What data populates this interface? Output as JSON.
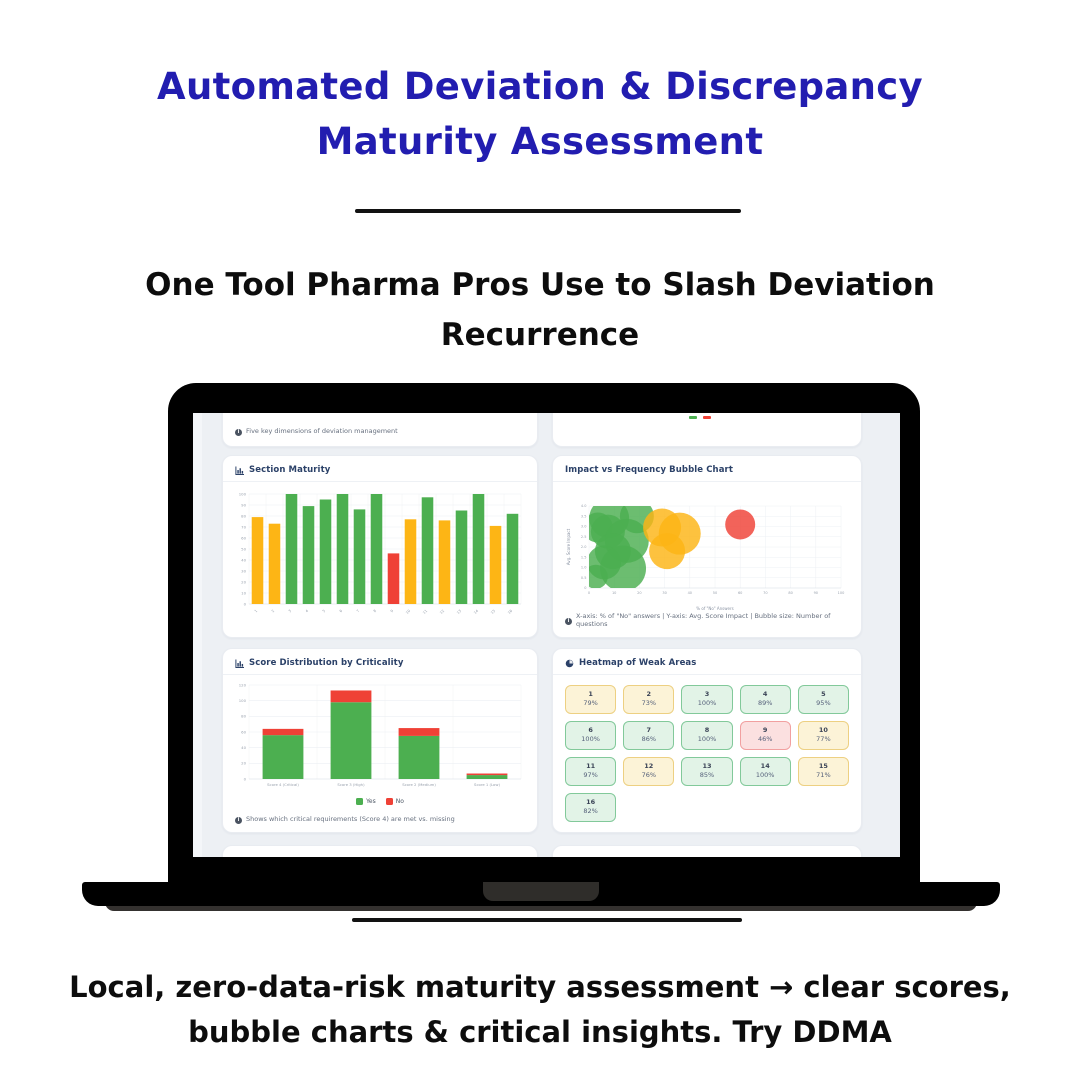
{
  "header": {
    "title_line1": "Automated Deviation & Discrepancy",
    "title_line2": "Maturity Assessment",
    "subtitle_line1": "One Tool Pharma Pros Use to Slash Deviation",
    "subtitle_line2": "Recurrence"
  },
  "footer": {
    "line1": "Local, zero-data-risk maturity assessment → clear scores,",
    "line2": "bubble charts & critical insights. Try DDMA"
  },
  "colors": {
    "title_blue": "#221db0",
    "green": "#4caf50",
    "yellow": "#fdb515",
    "red": "#ef4136",
    "panel_title": "#2b4168",
    "heatmap": {
      "green": {
        "bg": "#e2f3e7",
        "border": "#82c99a"
      },
      "yellow": {
        "bg": "#fcf3d7",
        "border": "#edd082"
      },
      "red": {
        "bg": "#fbe0e0",
        "border": "#f1a0a0"
      }
    }
  },
  "dashboard": {
    "top_left_caption": "Five key dimensions of deviation management"
  },
  "chart_data": [
    {
      "id": "section_maturity",
      "type": "bar",
      "title": "Section Maturity",
      "categories": [
        "1",
        "2",
        "3",
        "4",
        "5",
        "6",
        "7",
        "8",
        "9",
        "10",
        "11",
        "12",
        "13",
        "14",
        "15",
        "16"
      ],
      "values": [
        79,
        73,
        100,
        89,
        95,
        100,
        86,
        100,
        46,
        77,
        97,
        76,
        85,
        100,
        71,
        82
      ],
      "bar_colors": [
        "yellow",
        "yellow",
        "green",
        "green",
        "green",
        "green",
        "green",
        "green",
        "red",
        "yellow",
        "green",
        "yellow",
        "green",
        "green",
        "yellow",
        "green"
      ],
      "xlabel": "",
      "ylabel": "",
      "ylim": [
        0,
        100
      ],
      "ytick_step": 10,
      "grid": true
    },
    {
      "id": "impact_frequency",
      "type": "scatter",
      "title": "Impact vs Frequency Bubble Chart",
      "xlabel": "% of \"No\" Answers",
      "ylabel": "Avg. Score Impact",
      "xlim": [
        0,
        100
      ],
      "xtick_step": 10,
      "ylim": [
        0,
        4
      ],
      "ytick_step": 0.5,
      "grid": true,
      "caption": "X-axis: % of \"No\" answers | Y-axis: Avg. Score Impact | Bubble size: Number of questions",
      "bubbles": [
        {
          "x": 8,
          "y": 3.4,
          "r": 20,
          "color": "green"
        },
        {
          "x": 19,
          "y": 3.5,
          "r": 17,
          "color": "green"
        },
        {
          "x": 3.5,
          "y": 2.95,
          "r": 15,
          "color": "green"
        },
        {
          "x": 7.5,
          "y": 2.75,
          "r": 17,
          "color": "green"
        },
        {
          "x": 15,
          "y": 2.3,
          "r": 22,
          "color": "green"
        },
        {
          "x": 9.5,
          "y": 1.8,
          "r": 18,
          "color": "green"
        },
        {
          "x": 6,
          "y": 1.25,
          "r": 17,
          "color": "green"
        },
        {
          "x": 13.5,
          "y": 0.95,
          "r": 23,
          "color": "green"
        },
        {
          "x": 2.7,
          "y": 0.55,
          "r": 12,
          "color": "green"
        },
        {
          "x": 29,
          "y": 2.95,
          "r": 19,
          "color": "yellow"
        },
        {
          "x": 36,
          "y": 2.65,
          "r": 21,
          "color": "yellow"
        },
        {
          "x": 31,
          "y": 1.8,
          "r": 18,
          "color": "yellow"
        },
        {
          "x": 60,
          "y": 3.1,
          "r": 15,
          "color": "red"
        }
      ]
    },
    {
      "id": "score_distribution",
      "type": "bar",
      "title": "Score Distribution by Criticality",
      "categories": [
        "Score 4 (Critical)",
        "Score 3 (High)",
        "Score 2 (Medium)",
        "Score 1 (Low)"
      ],
      "series": [
        {
          "name": "Yes",
          "color": "green",
          "values": [
            56,
            98,
            55,
            5
          ]
        },
        {
          "name": "No",
          "color": "red",
          "values": [
            8,
            15,
            10,
            2
          ]
        }
      ],
      "stacked": true,
      "xlabel": "",
      "ylabel": "",
      "ylim": [
        0,
        120
      ],
      "ytick_step": 20,
      "grid": true,
      "legend_position": "bottom",
      "caption": "Shows which critical requirements (Score 4) are met vs. missing"
    },
    {
      "id": "heatmap_weak_areas",
      "type": "heatmap",
      "title": "Heatmap of Weak Areas",
      "cells": [
        {
          "label": "1",
          "value": "79%",
          "status": "yellow"
        },
        {
          "label": "2",
          "value": "73%",
          "status": "yellow"
        },
        {
          "label": "3",
          "value": "100%",
          "status": "green"
        },
        {
          "label": "4",
          "value": "89%",
          "status": "green"
        },
        {
          "label": "5",
          "value": "95%",
          "status": "green"
        },
        {
          "label": "6",
          "value": "100%",
          "status": "green"
        },
        {
          "label": "7",
          "value": "86%",
          "status": "green"
        },
        {
          "label": "8",
          "value": "100%",
          "status": "green"
        },
        {
          "label": "9",
          "value": "46%",
          "status": "red"
        },
        {
          "label": "10",
          "value": "77%",
          "status": "yellow"
        },
        {
          "label": "11",
          "value": "97%",
          "status": "green"
        },
        {
          "label": "12",
          "value": "76%",
          "status": "yellow"
        },
        {
          "label": "13",
          "value": "85%",
          "status": "green"
        },
        {
          "label": "14",
          "value": "100%",
          "status": "green"
        },
        {
          "label": "15",
          "value": "71%",
          "status": "yellow"
        },
        {
          "label": "16",
          "value": "82%",
          "status": "green"
        }
      ]
    }
  ]
}
